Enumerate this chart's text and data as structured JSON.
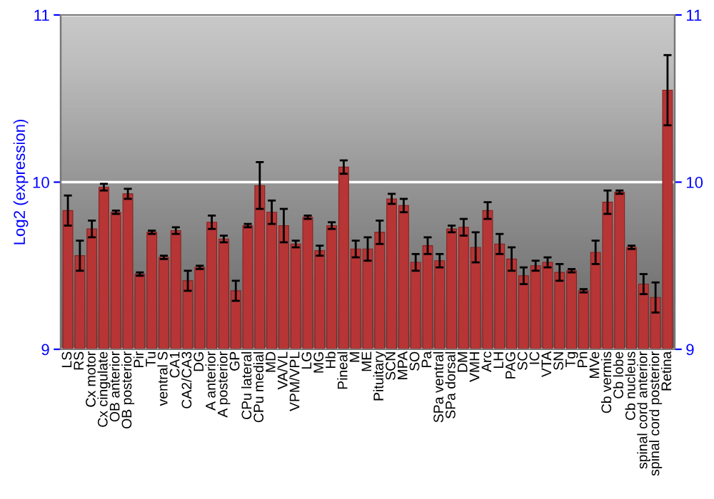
{
  "chart_data": {
    "type": "bar",
    "ylabel": "Log2 (expression)",
    "categories": [
      "LS",
      "RS",
      "Cx motor",
      "Cx cingulate",
      "OB anterior",
      "OB posterior",
      "Pir",
      "Tu",
      "ventral S",
      "CA1",
      "CA2/CA3",
      "DG",
      "A anterior",
      "A posterior",
      "GP",
      "CPu lateral",
      "CPu medial",
      "MD",
      "VA/VL",
      "VPM/VPL",
      "LG",
      "MG",
      "Hb",
      "Pineal",
      "M",
      "ME",
      "Pituitary",
      "SCN",
      "MPA",
      "SO",
      "Pa",
      "SPa ventral",
      "SPa dorsal",
      "DM",
      "VMH",
      "Arc",
      "LH",
      "PAG",
      "SC",
      "IC",
      "VTA",
      "SN",
      "Tg",
      "Pn",
      "MVe",
      "Cb vermis",
      "Cb lobe",
      "Cb nucleus",
      "spinal cord anterior",
      "spinal cord posterior",
      "Retina"
    ],
    "values": [
      9.83,
      9.56,
      9.72,
      9.97,
      9.82,
      9.93,
      9.45,
      9.7,
      9.55,
      9.71,
      9.41,
      9.49,
      9.76,
      9.66,
      9.35,
      9.74,
      9.98,
      9.82,
      9.74,
      9.63,
      9.79,
      9.59,
      9.74,
      10.09,
      9.6,
      9.6,
      9.7,
      9.9,
      9.86,
      9.52,
      9.62,
      9.53,
      9.72,
      9.73,
      9.61,
      9.83,
      9.63,
      9.54,
      9.44,
      9.5,
      9.52,
      9.46,
      9.47,
      9.35,
      9.58,
      9.88,
      9.94,
      9.61,
      9.39,
      9.31,
      10.55
    ],
    "errors": [
      0.09,
      0.09,
      0.05,
      0.02,
      0.01,
      0.03,
      0.01,
      0.01,
      0.01,
      0.02,
      0.06,
      0.01,
      0.04,
      0.02,
      0.06,
      0.01,
      0.14,
      0.07,
      0.1,
      0.02,
      0.01,
      0.03,
      0.02,
      0.04,
      0.05,
      0.07,
      0.07,
      0.03,
      0.04,
      0.05,
      0.05,
      0.04,
      0.02,
      0.05,
      0.09,
      0.05,
      0.06,
      0.07,
      0.05,
      0.03,
      0.03,
      0.05,
      0.01,
      0.01,
      0.07,
      0.07,
      0.01,
      0.01,
      0.06,
      0.09,
      0.21
    ],
    "color": "#b83535",
    "ylim": [
      9,
      11
    ],
    "yticks": [
      9,
      10,
      11
    ],
    "y2lim": [
      9,
      11
    ],
    "y2ticks": [
      9,
      10,
      11
    ],
    "grid": "y"
  }
}
